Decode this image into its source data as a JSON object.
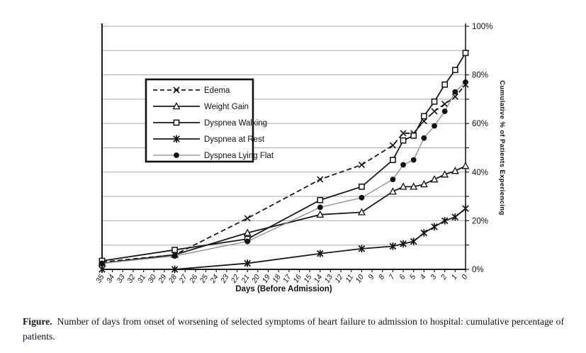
{
  "figure": {
    "caption_prefix": "Figure.",
    "caption_text": "Number of days from onset of worsening of selected symptoms of heart failure to admission to hospital: cumulative percentage of patients."
  },
  "chart_data": {
    "type": "line",
    "title": "",
    "xlabel": "Days (Before Admission)",
    "ylabel": "Cumulative % of Patients Experiencing",
    "x": [
      35,
      28,
      21,
      14,
      10,
      7,
      6,
      5,
      4,
      3,
      2,
      1,
      0
    ],
    "x_axis": {
      "direction": "descending-days",
      "min_label": "35",
      "max_label": "0",
      "tick_labels": [
        "35",
        "34",
        "33",
        "32",
        "31",
        "30",
        "29",
        "28",
        "27",
        "26",
        "25",
        "24",
        "23",
        "22",
        "21",
        "20",
        "19",
        "18",
        "17",
        "16",
        "15",
        "14",
        "13",
        "12",
        "11",
        "10",
        "9",
        "8",
        "7",
        "6",
        "5",
        "4",
        "3",
        "2",
        "1",
        "0"
      ]
    },
    "y_axis": {
      "min": 0,
      "max": 100,
      "gridline_step": 10,
      "tick_labels": [
        "0%",
        "20%",
        "40%",
        "60%",
        "80%",
        "100%"
      ]
    },
    "grid": true,
    "legend_position": "upper-left-inside",
    "series": [
      {
        "name": "Edema",
        "line": "dashed",
        "marker": "x",
        "color": "#1a1a1a",
        "values": [
          3,
          6,
          21,
          37,
          43,
          51,
          56,
          56,
          61,
          65,
          68,
          71,
          76
        ]
      },
      {
        "name": "Weight Gain",
        "line": "solid",
        "marker": "triangle-open",
        "color": "#1a1a1a",
        "values": [
          2.5,
          6,
          15,
          22.5,
          23.5,
          32,
          34,
          34,
          35,
          37,
          39,
          40.5,
          42.5
        ]
      },
      {
        "name": "Dyspnea Walking",
        "line": "solid",
        "marker": "square-open",
        "color": "#1a1a1a",
        "values": [
          3.5,
          8,
          12.5,
          28.5,
          34,
          45,
          53,
          55,
          63,
          69,
          76,
          82,
          89
        ]
      },
      {
        "name": "Dyspnea at Rest",
        "line": "solid",
        "marker": "star",
        "color": "#1a1a1a",
        "values": [
          0,
          0,
          2.5,
          6.5,
          8.5,
          9.5,
          10.5,
          11.5,
          15,
          17.5,
          20,
          21.5,
          25
        ]
      },
      {
        "name": "Dyspnea Lying Flat",
        "line": "solid-thin-gray",
        "marker": "circle-filled",
        "color": "#8c8c8c",
        "values": [
          2.5,
          5.5,
          11.5,
          25.5,
          29.5,
          37,
          43,
          45,
          54,
          59,
          65,
          73,
          77
        ]
      }
    ]
  },
  "colors": {
    "axis": "#1a1a1a",
    "gridline": "#a9a9a9",
    "background": "#ffffff",
    "marker_stroke": "#111111"
  }
}
